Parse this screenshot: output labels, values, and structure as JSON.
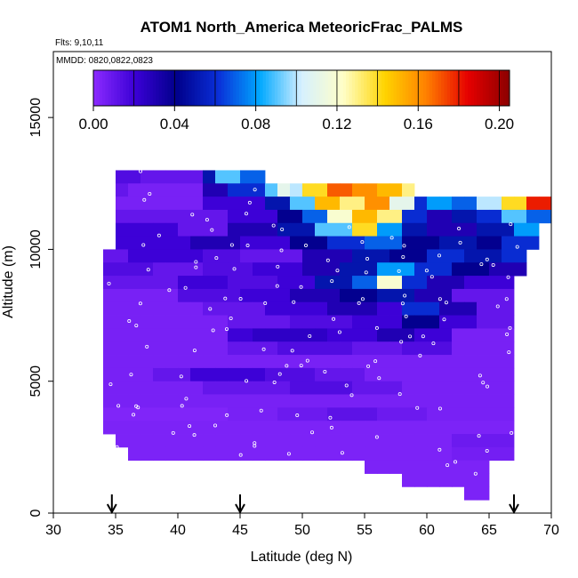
{
  "chart_data": {
    "type": "heatmap",
    "title": "ATOM1 North_America MeteoricFrac_PALMS",
    "subtitle_flights": "Flts: 9,10,11",
    "subtitle_dates": "MMDD: 0820,0822,0823",
    "xlabel": "Latitude (deg N)",
    "ylabel": "Altitude (m)",
    "xlim": [
      30,
      70
    ],
    "ylim": [
      0,
      17500
    ],
    "x_ticks": [
      "30",
      "35",
      "40",
      "45",
      "50",
      "55",
      "60",
      "65",
      "70"
    ],
    "y_ticks": [
      "0",
      "5000",
      "10000",
      "15000"
    ],
    "colorbar": {
      "min": 0.0,
      "max": 0.205,
      "tick_values": [
        0.0,
        0.04,
        0.08,
        0.12,
        0.16,
        0.2
      ],
      "tick_labels": [
        "0.00",
        "0.04",
        "0.08",
        "0.12",
        "0.16",
        "0.20"
      ],
      "divisions": [
        0.0,
        0.02,
        0.04,
        0.06,
        0.08,
        0.1,
        0.12,
        0.14,
        0.16,
        0.18,
        0.2
      ],
      "colors": [
        "#8c2bff",
        "#3b00d6",
        "#00008b",
        "#0a2fd8",
        "#00a8ff",
        "#d6f0ff",
        "#ffffc8",
        "#ffd400",
        "#ff8000",
        "#e60000",
        "#8b0000"
      ]
    },
    "flight_arrows_lat": [
      34.7,
      45.0,
      67.0
    ],
    "grid": false,
    "bin_size": {
      "lat": 1,
      "alt": 500
    },
    "bands": [
      {
        "alt": 12500,
        "segments": [
          [
            35,
            37,
            0.015
          ],
          [
            37,
            42,
            0.01
          ],
          [
            42,
            43,
            0.05
          ],
          [
            43,
            45,
            0.09
          ],
          [
            45,
            47,
            0.07
          ]
        ]
      },
      {
        "alt": 12000,
        "segments": [
          [
            35,
            36,
            0.01
          ],
          [
            36,
            42,
            0.005
          ],
          [
            42,
            44,
            0.03
          ],
          [
            44,
            47,
            0.06
          ],
          [
            47,
            48,
            0.09
          ],
          [
            48,
            49,
            0.11
          ],
          [
            49,
            50,
            0.1
          ],
          [
            50,
            52,
            0.14
          ],
          [
            52,
            54,
            0.17
          ],
          [
            54,
            56,
            0.16
          ],
          [
            56,
            58,
            0.15
          ],
          [
            58,
            59,
            0.13
          ]
        ]
      },
      {
        "alt": 11500,
        "segments": [
          [
            35,
            42,
            0.005
          ],
          [
            42,
            47,
            0.02
          ],
          [
            47,
            49,
            0.05
          ],
          [
            49,
            51,
            0.09
          ],
          [
            51,
            53,
            0.15
          ],
          [
            53,
            55,
            0.13
          ],
          [
            55,
            57,
            0.16
          ],
          [
            57,
            59,
            0.11
          ],
          [
            59,
            60,
            0.06
          ],
          [
            60,
            62,
            0.08
          ],
          [
            62,
            64,
            0.07
          ],
          [
            64,
            66,
            0.1
          ],
          [
            66,
            68,
            0.14
          ],
          [
            68,
            70,
            0.18
          ]
        ]
      },
      {
        "alt": 11000,
        "segments": [
          [
            35,
            44,
            0.01
          ],
          [
            44,
            48,
            0.02
          ],
          [
            48,
            50,
            0.04
          ],
          [
            50,
            52,
            0.07
          ],
          [
            52,
            54,
            0.12
          ],
          [
            54,
            56,
            0.15
          ],
          [
            56,
            58,
            0.13
          ],
          [
            58,
            60,
            0.06
          ],
          [
            60,
            62,
            0.03
          ],
          [
            62,
            64,
            0.05
          ],
          [
            64,
            66,
            0.06
          ],
          [
            66,
            68,
            0.09
          ],
          [
            68,
            70,
            0.07
          ]
        ]
      },
      {
        "alt": 10500,
        "segments": [
          [
            35,
            40,
            0.02
          ],
          [
            40,
            44,
            0.01
          ],
          [
            44,
            48,
            0.03
          ],
          [
            48,
            51,
            0.05
          ],
          [
            51,
            54,
            0.09
          ],
          [
            54,
            56,
            0.14
          ],
          [
            56,
            58,
            0.08
          ],
          [
            58,
            60,
            0.05
          ],
          [
            60,
            64,
            0.03
          ],
          [
            64,
            67,
            0.05
          ],
          [
            67,
            69,
            0.08
          ]
        ]
      },
      {
        "alt": 10000,
        "segments": [
          [
            35,
            41,
            0.02
          ],
          [
            41,
            45,
            0.03
          ],
          [
            45,
            49,
            0.02
          ],
          [
            49,
            52,
            0.04
          ],
          [
            52,
            55,
            0.06
          ],
          [
            55,
            58,
            0.07
          ],
          [
            58,
            61,
            0.04
          ],
          [
            61,
            64,
            0.05
          ],
          [
            64,
            66,
            0.04
          ],
          [
            66,
            69,
            0.06
          ]
        ]
      },
      {
        "alt": 9500,
        "segments": [
          [
            34,
            36,
            0.01
          ],
          [
            36,
            42,
            0.02
          ],
          [
            42,
            45,
            0.015
          ],
          [
            45,
            50,
            0.01
          ],
          [
            50,
            54,
            0.03
          ],
          [
            54,
            57,
            0.05
          ],
          [
            57,
            60,
            0.04
          ],
          [
            60,
            63,
            0.06
          ],
          [
            63,
            66,
            0.05
          ],
          [
            66,
            68,
            0.06
          ]
        ]
      },
      {
        "alt": 9000,
        "segments": [
          [
            34,
            38,
            0.015
          ],
          [
            38,
            42,
            0.01
          ],
          [
            42,
            46,
            0.015
          ],
          [
            46,
            50,
            0.02
          ],
          [
            50,
            53,
            0.03
          ],
          [
            53,
            56,
            0.05
          ],
          [
            56,
            59,
            0.08
          ],
          [
            59,
            62,
            0.06
          ],
          [
            62,
            65,
            0.04
          ],
          [
            65,
            68,
            0.03
          ]
        ]
      },
      {
        "alt": 8500,
        "segments": [
          [
            34,
            40,
            0.01
          ],
          [
            40,
            44,
            0.02
          ],
          [
            44,
            48,
            0.015
          ],
          [
            48,
            51,
            0.02
          ],
          [
            51,
            54,
            0.05
          ],
          [
            54,
            56,
            0.07
          ],
          [
            56,
            58,
            0.12
          ],
          [
            58,
            60,
            0.06
          ],
          [
            60,
            63,
            0.03
          ],
          [
            63,
            67,
            0.02
          ]
        ]
      },
      {
        "alt": 8000,
        "segments": [
          [
            34,
            40,
            0.005
          ],
          [
            40,
            45,
            0.015
          ],
          [
            45,
            49,
            0.02
          ],
          [
            49,
            53,
            0.03
          ],
          [
            53,
            56,
            0.04
          ],
          [
            56,
            59,
            0.05
          ],
          [
            59,
            62,
            0.03
          ],
          [
            62,
            67,
            0.01
          ]
        ]
      },
      {
        "alt": 7500,
        "segments": [
          [
            34,
            42,
            0.005
          ],
          [
            42,
            47,
            0.01
          ],
          [
            47,
            52,
            0.02
          ],
          [
            52,
            56,
            0.03
          ],
          [
            56,
            58,
            0.02
          ],
          [
            58,
            61,
            0.06
          ],
          [
            61,
            64,
            0.03
          ],
          [
            64,
            67,
            0.01
          ]
        ]
      },
      {
        "alt": 7000,
        "segments": [
          [
            34,
            44,
            0.005
          ],
          [
            44,
            49,
            0.01
          ],
          [
            49,
            54,
            0.015
          ],
          [
            54,
            58,
            0.02
          ],
          [
            58,
            61,
            0.04
          ],
          [
            61,
            64,
            0.02
          ],
          [
            64,
            67,
            0.01
          ]
        ]
      },
      {
        "alt": 6500,
        "segments": [
          [
            34,
            44,
            0.005
          ],
          [
            44,
            46,
            0.02
          ],
          [
            46,
            52,
            0.025
          ],
          [
            52,
            56,
            0.02
          ],
          [
            56,
            59,
            0.03
          ],
          [
            59,
            62,
            0.02
          ],
          [
            62,
            67,
            0.005
          ]
        ]
      },
      {
        "alt": 6000,
        "segments": [
          [
            34,
            44,
            0.005
          ],
          [
            44,
            48,
            0.01
          ],
          [
            48,
            54,
            0.015
          ],
          [
            54,
            58,
            0.01
          ],
          [
            58,
            62,
            0.015
          ],
          [
            62,
            67,
            0.005
          ]
        ]
      },
      {
        "alt": 5500,
        "segments": [
          [
            34,
            67,
            0.005
          ]
        ]
      },
      {
        "alt": 5000,
        "segments": [
          [
            34,
            38,
            0.005
          ],
          [
            38,
            41,
            0.01
          ],
          [
            41,
            47,
            0.02
          ],
          [
            47,
            51,
            0.015
          ],
          [
            51,
            55,
            0.01
          ],
          [
            55,
            59,
            0.005
          ],
          [
            59,
            67,
            0.005
          ]
        ]
      },
      {
        "alt": 4500,
        "segments": [
          [
            34,
            42,
            0.005
          ],
          [
            42,
            49,
            0.01
          ],
          [
            49,
            54,
            0.015
          ],
          [
            54,
            58,
            0.01
          ],
          [
            58,
            67,
            0.005
          ]
        ]
      },
      {
        "alt": 4000,
        "segments": [
          [
            34,
            67,
            0.005
          ]
        ]
      },
      {
        "alt": 3500,
        "segments": [
          [
            34,
            44,
            0.003
          ],
          [
            44,
            48,
            0.005
          ],
          [
            48,
            52,
            0.008
          ],
          [
            52,
            56,
            0.012
          ],
          [
            56,
            60,
            0.008
          ],
          [
            60,
            67,
            0.005
          ]
        ]
      },
      {
        "alt": 3000,
        "segments": [
          [
            34,
            67,
            0.004
          ]
        ]
      },
      {
        "alt": 2500,
        "segments": [
          [
            35,
            62,
            0.004
          ],
          [
            62,
            67,
            0.008
          ]
        ]
      },
      {
        "alt": 2000,
        "segments": [
          [
            36,
            62,
            0.004
          ],
          [
            62,
            67,
            0.006
          ]
        ]
      },
      {
        "alt": 1500,
        "segments": [
          [
            55,
            65,
            0.004
          ]
        ]
      },
      {
        "alt": 1000,
        "segments": [
          [
            58,
            65,
            0.004
          ]
        ]
      },
      {
        "alt": 500,
        "segments": [
          [
            63,
            65,
            0.004
          ]
        ]
      }
    ]
  }
}
